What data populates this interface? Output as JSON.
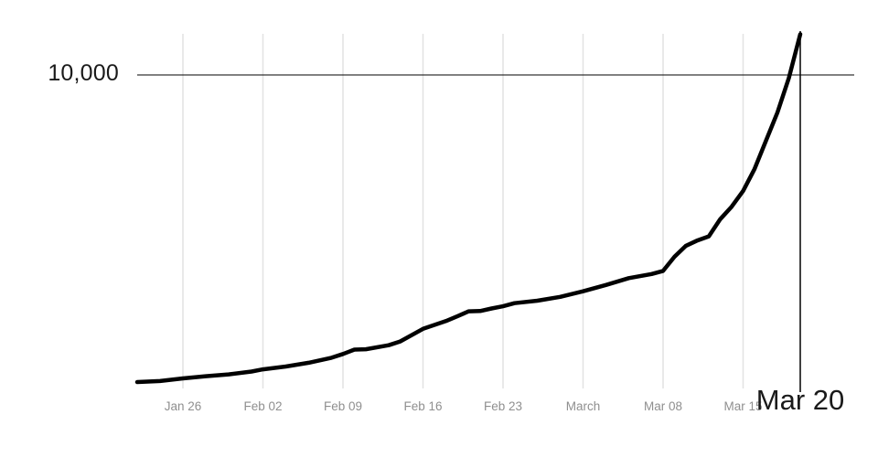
{
  "chart_data": {
    "type": "line",
    "title": "",
    "xlabel": "",
    "ylabel": "",
    "legend": "none",
    "grid": "vertical gridlines at weekly date ticks only",
    "x_unit": "days (day 0 is 4 days before the Jan 26 tick; ticks are weekly)",
    "ylim": [
      0,
      11500
    ],
    "threshold": {
      "value": 10000,
      "label": "10,000"
    },
    "annotation": {
      "label": "Mar 20",
      "day": 58
    },
    "x_ticks": [
      {
        "label": "Jan 26",
        "day": 4
      },
      {
        "label": "Feb 02",
        "day": 11
      },
      {
        "label": "Feb 09",
        "day": 18
      },
      {
        "label": "Feb 16",
        "day": 25
      },
      {
        "label": "Feb 23",
        "day": 32
      },
      {
        "label": "March",
        "day": 39
      },
      {
        "label": "Mar 08",
        "day": 46
      },
      {
        "label": "Mar 15",
        "day": 53
      }
    ],
    "points": [
      [
        0,
        205
      ],
      [
        2,
        235
      ],
      [
        4,
        320
      ],
      [
        6,
        390
      ],
      [
        8,
        450
      ],
      [
        10,
        540
      ],
      [
        11,
        610
      ],
      [
        13,
        700
      ],
      [
        15,
        820
      ],
      [
        17,
        980
      ],
      [
        18,
        1100
      ],
      [
        19,
        1240
      ],
      [
        20,
        1250
      ],
      [
        22,
        1380
      ],
      [
        23,
        1500
      ],
      [
        25,
        1900
      ],
      [
        27,
        2150
      ],
      [
        28,
        2300
      ],
      [
        29,
        2460
      ],
      [
        30,
        2470
      ],
      [
        31,
        2550
      ],
      [
        32,
        2620
      ],
      [
        33,
        2720
      ],
      [
        35,
        2800
      ],
      [
        37,
        2920
      ],
      [
        39,
        3100
      ],
      [
        41,
        3300
      ],
      [
        43,
        3520
      ],
      [
        45,
        3650
      ],
      [
        46,
        3750
      ],
      [
        47,
        4200
      ],
      [
        48,
        4550
      ],
      [
        49,
        4720
      ],
      [
        50,
        4850
      ],
      [
        51,
        5400
      ],
      [
        52,
        5800
      ],
      [
        53,
        6300
      ],
      [
        54,
        7000
      ],
      [
        55,
        7900
      ],
      [
        56,
        8800
      ],
      [
        57,
        9900
      ],
      [
        58,
        11300
      ]
    ],
    "colors": {
      "curve": "#000000",
      "grid": "#e2e2e2",
      "threshold_line": "#000000",
      "crosshair_line": "#000000",
      "tick_text": "#8f8f8f",
      "axis_text": "#1a1a1a"
    }
  }
}
